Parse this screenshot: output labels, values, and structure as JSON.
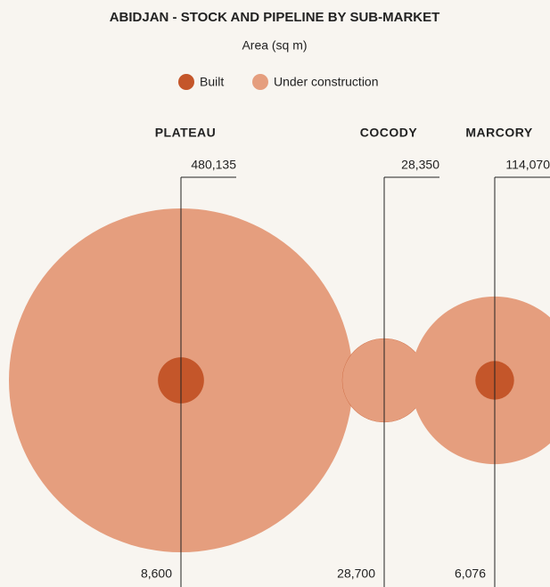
{
  "chart_data": {
    "type": "bubble",
    "title": "ABIDJAN - STOCK AND PIPELINE BY SUB-MARKET",
    "subtitle": "Area (sq m)",
    "categories": [
      "PLATEAU",
      "COCODY",
      "MARCORY"
    ],
    "series": [
      {
        "name": "Built",
        "color": "#c4562a",
        "values": [
          8600,
          28700,
          6076
        ],
        "value_labels": [
          "8,600",
          "28,700",
          "6,076"
        ]
      },
      {
        "name": "Under construction",
        "color": "#e59e7e",
        "values": [
          480135,
          28350,
          114070
        ],
        "value_labels": [
          "480,135",
          "28,350",
          "114,070"
        ]
      }
    ]
  }
}
